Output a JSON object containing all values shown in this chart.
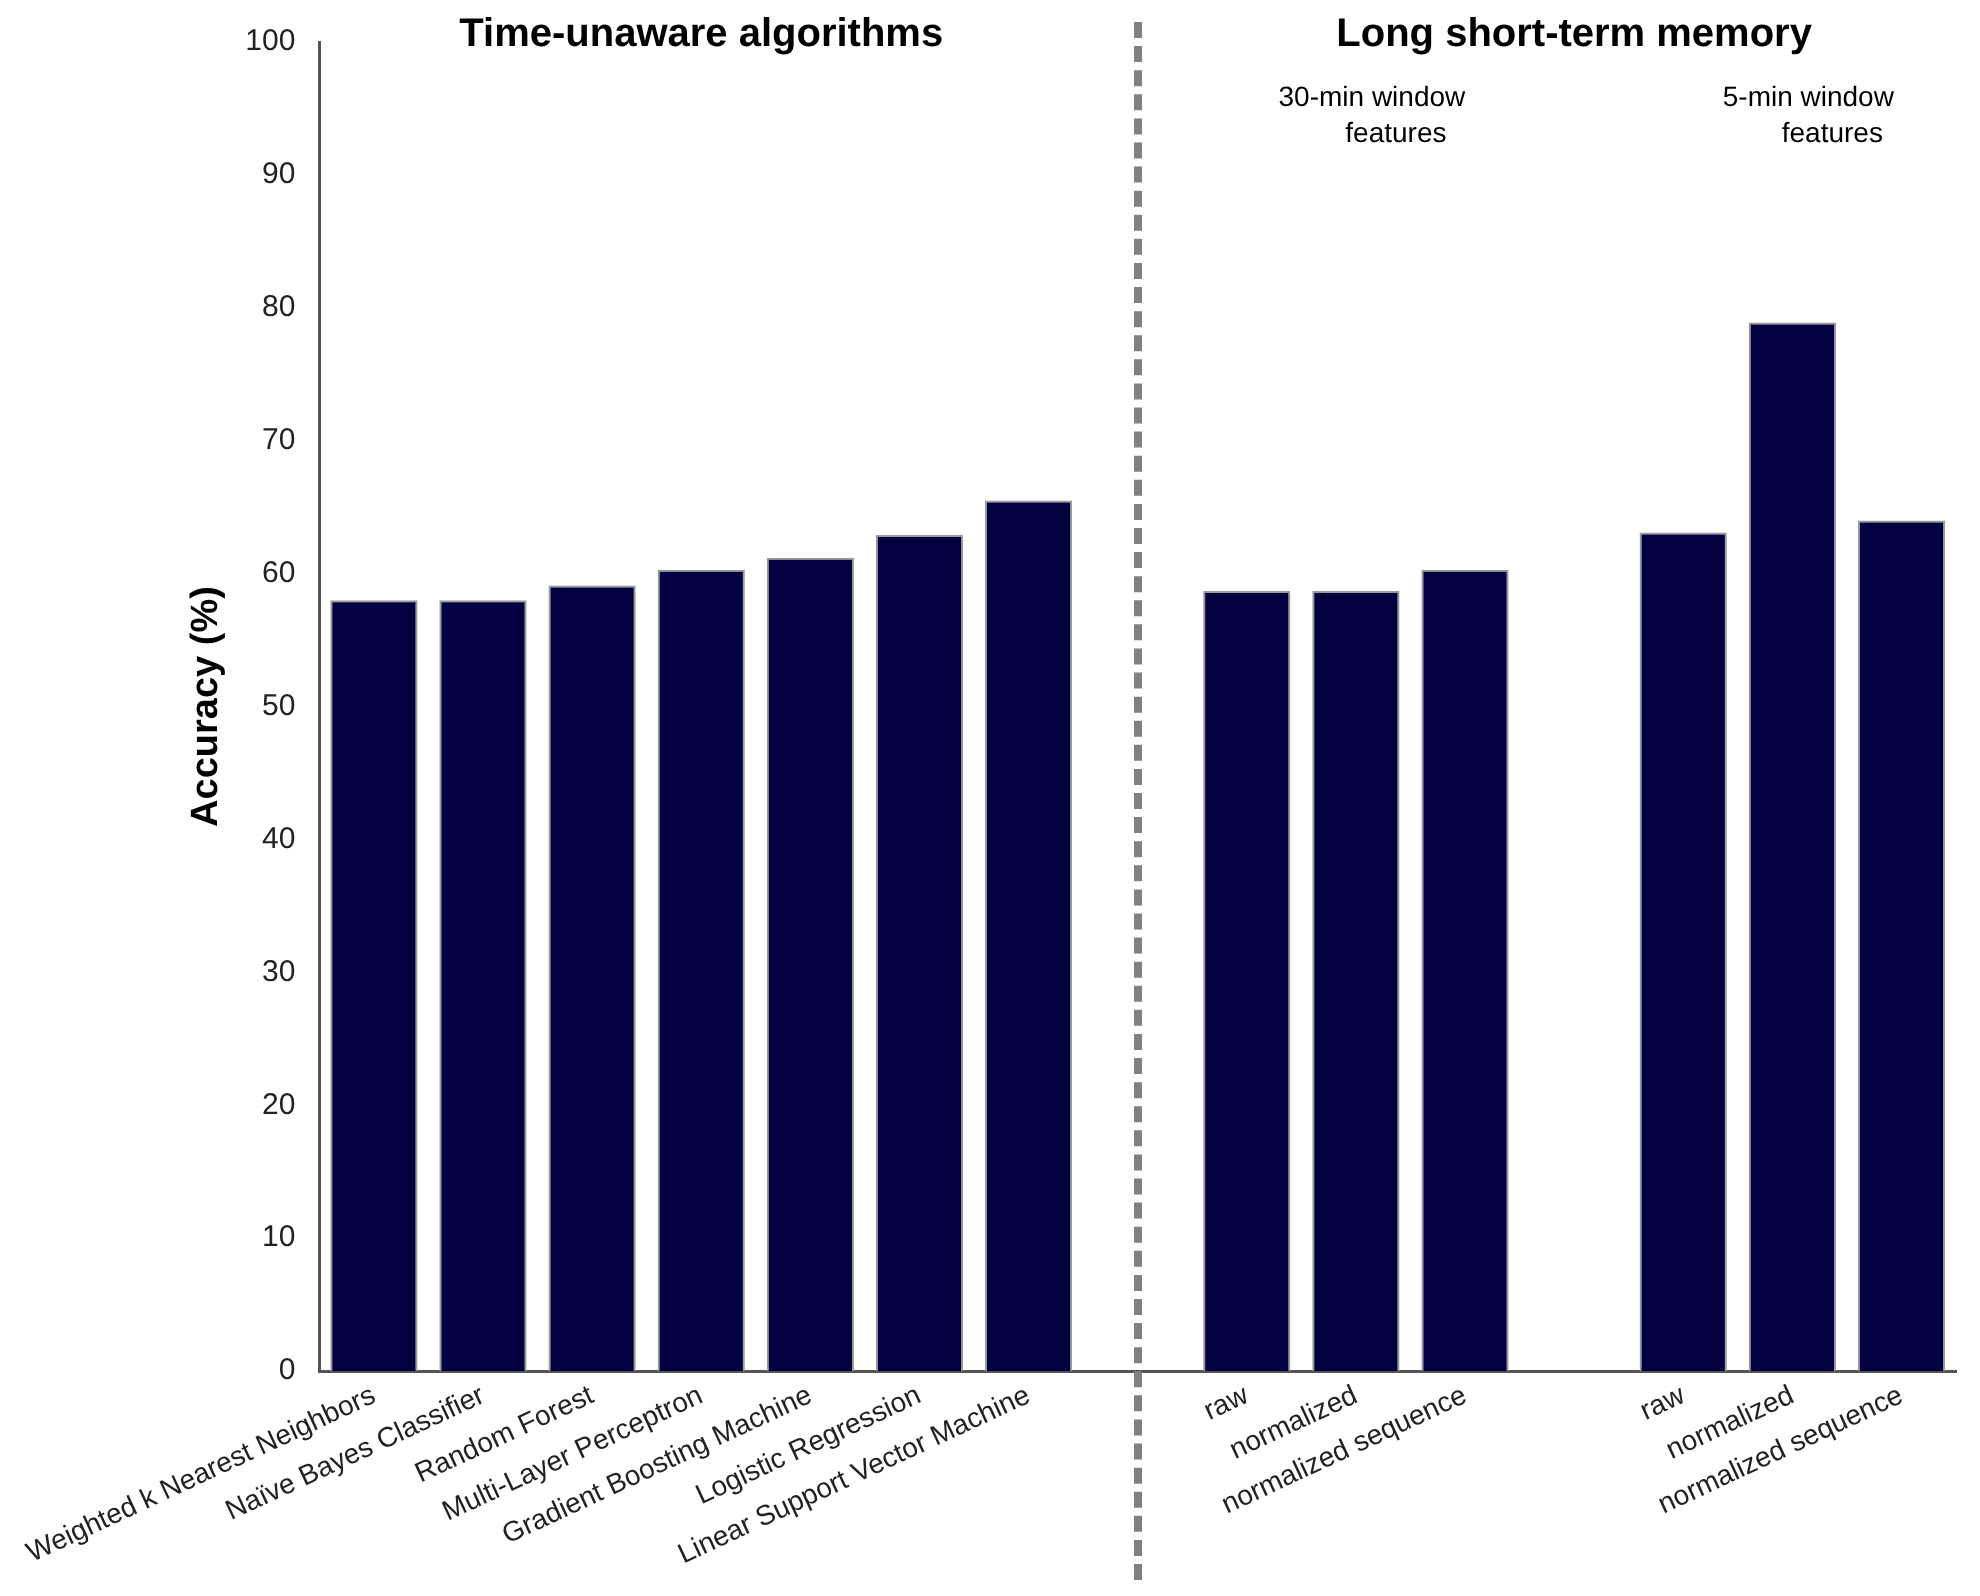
{
  "chart_data": {
    "type": "bar",
    "ylabel": "Accuracy (%)",
    "categories": [
      "Weighted k Nearest Neighbors",
      "Naïve Bayes Classifier",
      "Random Forest",
      "Multi-Layer Perceptron",
      "Gradient Boosting Machine",
      "Logistic Regression",
      "Linear Support Vector Machine",
      null,
      "raw",
      "normalized",
      "normalized sequence",
      null,
      "raw",
      "normalized",
      "normalized sequence"
    ],
    "values": [
      58,
      58,
      59.1,
      60.3,
      61.2,
      62.9,
      65.5,
      null,
      58.7,
      58.7,
      60.3,
      null,
      63.1,
      78.9,
      64
    ],
    "color": "#03003f",
    "ylim": [
      0,
      100
    ],
    "yticks": [
      0,
      10,
      20,
      30,
      40,
      50,
      60,
      70,
      80,
      90,
      100
    ],
    "annotations": [
      "Time-unaware algorithms",
      "Long short-term memory",
      "30-min window features",
      "5-min window features"
    ]
  }
}
